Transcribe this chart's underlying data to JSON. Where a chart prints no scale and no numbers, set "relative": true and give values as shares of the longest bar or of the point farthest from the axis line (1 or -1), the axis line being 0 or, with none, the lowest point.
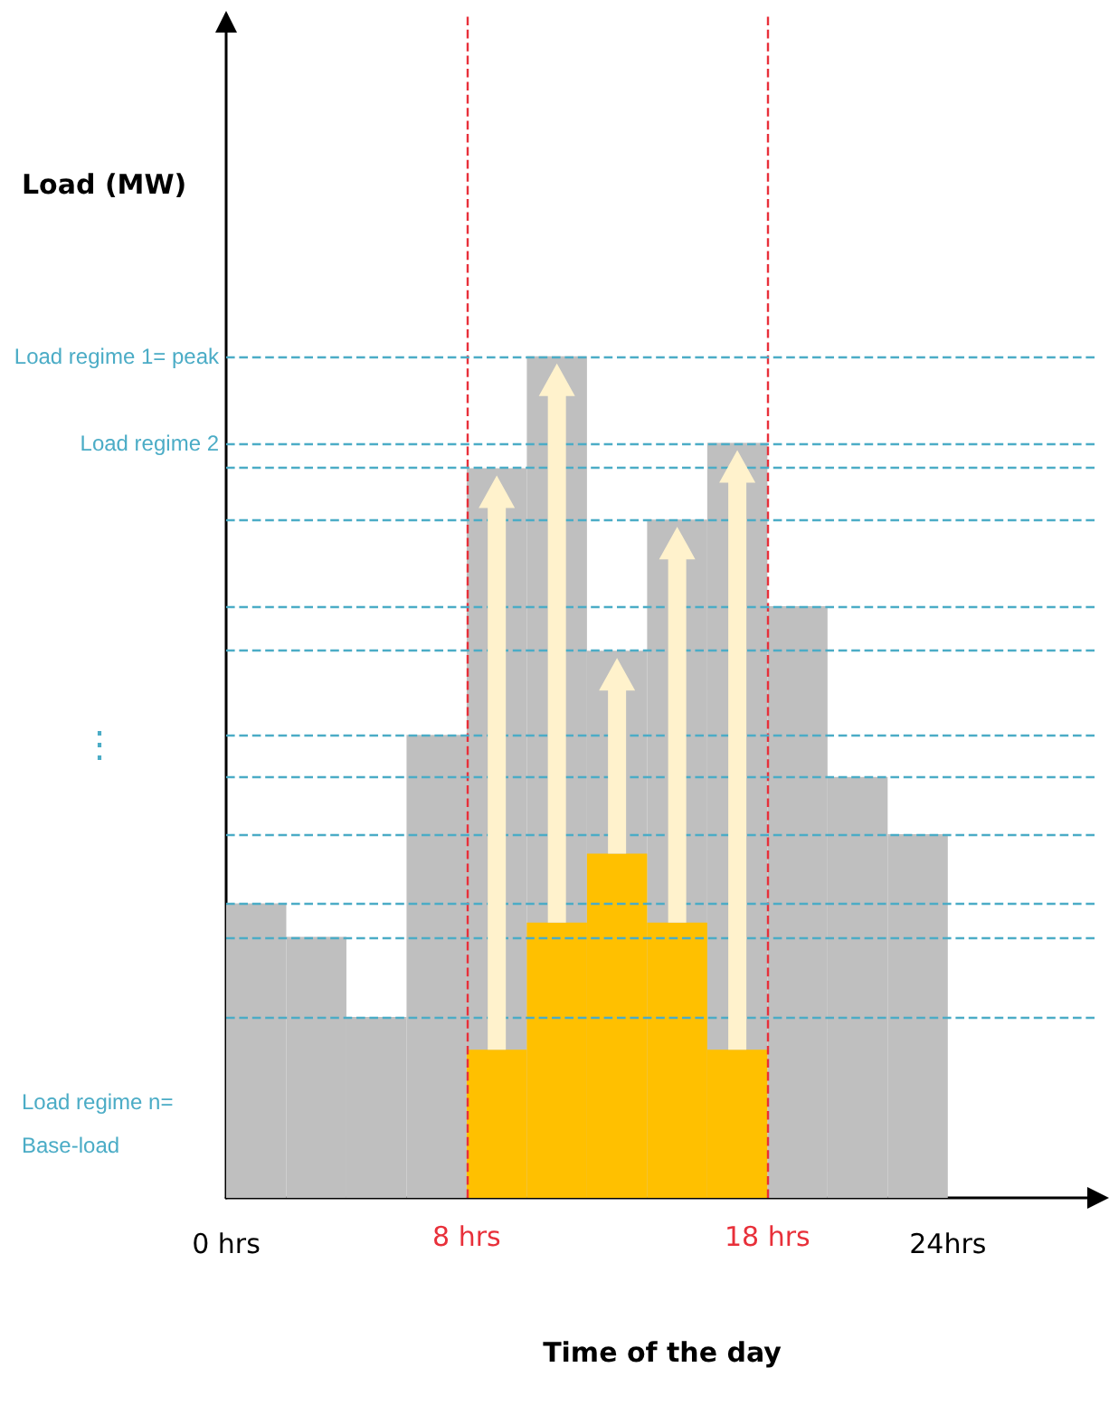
{
  "chart_data": {
    "type": "bar",
    "relative": true,
    "xlabel": "Time of the day",
    "xlim": [
      0,
      29
    ],
    "xticks": [
      {
        "value": 0,
        "label": "0 hrs"
      },
      {
        "value": 24,
        "label": "24hrs"
      }
    ],
    "x": [
      1,
      3,
      5,
      7,
      9,
      11,
      13,
      15,
      17,
      19,
      21,
      23
    ],
    "series": [
      {
        "color": "#bfbfbf",
        "values": [
          0.35,
          0.31,
          0.215,
          0.55,
          0.867,
          1,
          0.65,
          0.806,
          0.897,
          0.703,
          0.5,
          0.432
        ]
      },
      {
        "color": "#ffc000",
        "values": [
          null,
          null,
          null,
          null,
          0.176,
          0.327,
          0.409,
          0.327,
          0.176,
          null,
          null,
          null
        ]
      }
    ],
    "ref_lines": [
      {
        "axis": "x",
        "value": 8,
        "label": "8 hrs",
        "color": "#e8303a",
        "line_style": "dashed"
      },
      {
        "axis": "x",
        "value": 18,
        "label": "18 hrs",
        "color": "#e8303a",
        "line_style": "dashed"
      },
      {
        "axis": "y",
        "value": 1,
        "label": "Load regime 1= peak",
        "color": "#4bacc6",
        "line_style": "dashed"
      },
      {
        "axis": "y",
        "value": 0.897,
        "label": "Load regime 2",
        "color": "#4bacc6",
        "line_style": "dashed"
      },
      {
        "axis": "y",
        "value": 0.867,
        "label": null,
        "color": "#4bacc6",
        "line_style": "dashed"
      },
      {
        "axis": "y",
        "value": 0.806,
        "label": null,
        "color": "#4bacc6",
        "line_style": "dashed"
      },
      {
        "axis": "y",
        "value": 0.703,
        "label": null,
        "color": "#4bacc6",
        "line_style": "dashed"
      },
      {
        "axis": "y",
        "value": 0.65,
        "label": null,
        "color": "#4bacc6",
        "line_style": "dashed"
      },
      {
        "axis": "y",
        "value": 0.55,
        "label": null,
        "color": "#4bacc6",
        "line_style": "dashed"
      },
      {
        "axis": "y",
        "value": 0.5,
        "label": null,
        "color": "#4bacc6",
        "line_style": "dashed"
      },
      {
        "axis": "y",
        "value": 0.432,
        "label": null,
        "color": "#4bacc6",
        "line_style": "dashed"
      },
      {
        "axis": "y",
        "value": 0.35,
        "label": null,
        "color": "#4bacc6",
        "line_style": "dashed"
      },
      {
        "axis": "y",
        "value": 0.31,
        "label": null,
        "color": "#4bacc6",
        "line_style": "dashed"
      },
      {
        "axis": "y",
        "value": 0.215,
        "label": null,
        "color": "#4bacc6",
        "line_style": "dashed"
      }
    ],
    "annotations": [
      "Load (MW)",
      "⋮",
      "Load regime n= Base-load"
    ]
  }
}
